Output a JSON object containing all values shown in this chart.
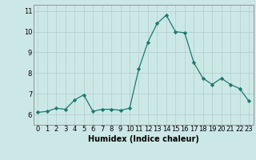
{
  "x": [
    0,
    1,
    2,
    3,
    4,
    5,
    6,
    7,
    8,
    9,
    10,
    11,
    12,
    13,
    14,
    15,
    16,
    17,
    18,
    19,
    20,
    21,
    22,
    23
  ],
  "y": [
    6.1,
    6.15,
    6.3,
    6.25,
    6.7,
    6.95,
    6.15,
    6.25,
    6.25,
    6.2,
    6.3,
    8.2,
    9.5,
    10.4,
    10.8,
    10.0,
    9.95,
    8.5,
    7.75,
    7.45,
    7.75,
    7.45,
    7.25,
    6.65
  ],
  "xlabel": "Humidex (Indice chaleur)",
  "ylim": [
    5.5,
    11.3
  ],
  "xlim": [
    -0.5,
    23.5
  ],
  "yticks": [
    6,
    7,
    8,
    9,
    10,
    11
  ],
  "xticks": [
    0,
    1,
    2,
    3,
    4,
    5,
    6,
    7,
    8,
    9,
    10,
    11,
    12,
    13,
    14,
    15,
    16,
    17,
    18,
    19,
    20,
    21,
    22,
    23
  ],
  "line_color": "#1a7a6e",
  "marker_color": "#1a7a6e",
  "bg_color": "#cce8e6",
  "grid_color_major": "#b0cccc",
  "grid_color_minor": "#b0cccc",
  "axis_color": "#888888",
  "xlabel_fontsize": 7,
  "tick_fontsize": 6
}
